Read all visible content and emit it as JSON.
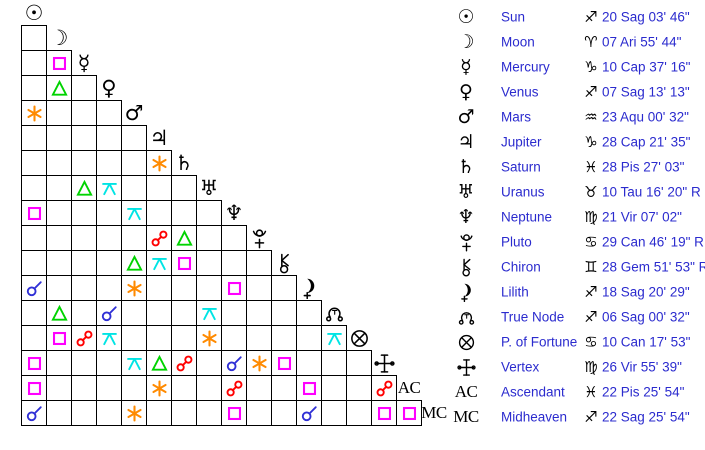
{
  "colors": {
    "background": "#ffffff",
    "grid_line": "#000000",
    "glyph_black": "#000000",
    "text_blue": "#2b2bce",
    "aspect": {
      "conjunction": "#3030d6",
      "sextile": "#ff8a00",
      "square": "#ff00ff",
      "trine": "#00d300",
      "opposition": "#ff0000",
      "quincunx": "#00e4e4"
    }
  },
  "icons": {
    "unicode": {
      "sun": "☉",
      "moon": "☽",
      "mercury": "☿",
      "venus": "♀",
      "mars": "♂",
      "jupiter": "♃",
      "saturn": "♄",
      "uranus": "♅",
      "neptune": "♆",
      "aries": "♈",
      "taurus": "♉",
      "gemini": "♊",
      "cancer": "♋",
      "virgo": "♍",
      "sagittarius": "♐",
      "capricorn": "♑",
      "aquarius": "♒",
      "pisces": "♓"
    },
    "svg_icons": [
      "pluto",
      "chiron",
      "lilith",
      "truenode",
      "fortune",
      "vertex"
    ]
  },
  "grid": {
    "points": [
      {
        "id": "sun",
        "label": "Sun",
        "display": "icon"
      },
      {
        "id": "moon",
        "label": "Moon",
        "display": "icon"
      },
      {
        "id": "mercury",
        "label": "Mercury",
        "display": "icon"
      },
      {
        "id": "venus",
        "label": "Venus",
        "display": "icon"
      },
      {
        "id": "mars",
        "label": "Mars",
        "display": "icon"
      },
      {
        "id": "jupiter",
        "label": "Jupiter",
        "display": "icon"
      },
      {
        "id": "saturn",
        "label": "Saturn",
        "display": "icon"
      },
      {
        "id": "uranus",
        "label": "Uranus",
        "display": "icon"
      },
      {
        "id": "neptune",
        "label": "Neptune",
        "display": "icon"
      },
      {
        "id": "pluto",
        "label": "Pluto",
        "display": "icon"
      },
      {
        "id": "chiron",
        "label": "Chiron",
        "display": "icon"
      },
      {
        "id": "lilith",
        "label": "Lilith",
        "display": "icon"
      },
      {
        "id": "truenode",
        "label": "True Node",
        "display": "icon"
      },
      {
        "id": "fortune",
        "label": "P. of Fortune",
        "display": "icon"
      },
      {
        "id": "vertex",
        "label": "Vertex",
        "display": "icon"
      },
      {
        "id": "ac",
        "label": "Ascendant",
        "display": "text",
        "text": "AC"
      },
      {
        "id": "mc",
        "label": "Midheaven",
        "display": "text",
        "text": "MC"
      }
    ],
    "aspects": [
      {
        "row": 3,
        "col": 2,
        "type": "square"
      },
      {
        "row": 4,
        "col": 2,
        "type": "trine"
      },
      {
        "row": 5,
        "col": 1,
        "type": "sextile"
      },
      {
        "row": 7,
        "col": 6,
        "type": "sextile"
      },
      {
        "row": 8,
        "col": 3,
        "type": "trine"
      },
      {
        "row": 8,
        "col": 4,
        "type": "quincunx"
      },
      {
        "row": 9,
        "col": 1,
        "type": "square"
      },
      {
        "row": 9,
        "col": 5,
        "type": "quincunx"
      },
      {
        "row": 10,
        "col": 6,
        "type": "opposition"
      },
      {
        "row": 10,
        "col": 7,
        "type": "trine"
      },
      {
        "row": 11,
        "col": 5,
        "type": "trine"
      },
      {
        "row": 11,
        "col": 6,
        "type": "quincunx"
      },
      {
        "row": 11,
        "col": 7,
        "type": "square"
      },
      {
        "row": 12,
        "col": 1,
        "type": "conjunction"
      },
      {
        "row": 12,
        "col": 5,
        "type": "sextile"
      },
      {
        "row": 12,
        "col": 9,
        "type": "square"
      },
      {
        "row": 13,
        "col": 2,
        "type": "trine"
      },
      {
        "row": 13,
        "col": 4,
        "type": "conjunction"
      },
      {
        "row": 13,
        "col": 8,
        "type": "quincunx"
      },
      {
        "row": 14,
        "col": 2,
        "type": "square"
      },
      {
        "row": 14,
        "col": 3,
        "type": "opposition"
      },
      {
        "row": 14,
        "col": 4,
        "type": "quincunx"
      },
      {
        "row": 14,
        "col": 8,
        "type": "sextile"
      },
      {
        "row": 14,
        "col": 13,
        "type": "quincunx"
      },
      {
        "row": 15,
        "col": 1,
        "type": "square"
      },
      {
        "row": 15,
        "col": 5,
        "type": "quincunx"
      },
      {
        "row": 15,
        "col": 6,
        "type": "trine"
      },
      {
        "row": 15,
        "col": 7,
        "type": "opposition"
      },
      {
        "row": 15,
        "col": 9,
        "type": "conjunction"
      },
      {
        "row": 15,
        "col": 10,
        "type": "sextile"
      },
      {
        "row": 15,
        "col": 11,
        "type": "square"
      },
      {
        "row": 16,
        "col": 1,
        "type": "square"
      },
      {
        "row": 16,
        "col": 6,
        "type": "sextile"
      },
      {
        "row": 16,
        "col": 9,
        "type": "opposition"
      },
      {
        "row": 16,
        "col": 12,
        "type": "square"
      },
      {
        "row": 16,
        "col": 15,
        "type": "opposition"
      },
      {
        "row": 17,
        "col": 1,
        "type": "conjunction"
      },
      {
        "row": 17,
        "col": 5,
        "type": "sextile"
      },
      {
        "row": 17,
        "col": 9,
        "type": "square"
      },
      {
        "row": 17,
        "col": 12,
        "type": "conjunction"
      },
      {
        "row": 17,
        "col": 15,
        "type": "square"
      },
      {
        "row": 17,
        "col": 16,
        "type": "square"
      }
    ]
  },
  "panel": {
    "rows": [
      {
        "id": "sun",
        "name": "Sun",
        "sign": "sagittarius",
        "value": "20 Sag 03' 46\""
      },
      {
        "id": "moon",
        "name": "Moon",
        "sign": "aries",
        "value": "07 Ari 55' 44\""
      },
      {
        "id": "mercury",
        "name": "Mercury",
        "sign": "capricorn",
        "value": "10 Cap 37' 16\""
      },
      {
        "id": "venus",
        "name": "Venus",
        "sign": "sagittarius",
        "value": "07 Sag 13' 13\""
      },
      {
        "id": "mars",
        "name": "Mars",
        "sign": "aquarius",
        "value": "23 Aqu 00' 32\""
      },
      {
        "id": "jupiter",
        "name": "Jupiter",
        "sign": "capricorn",
        "value": "28 Cap 21' 35\""
      },
      {
        "id": "saturn",
        "name": "Saturn",
        "sign": "pisces",
        "value": "28 Pis 27' 03\""
      },
      {
        "id": "uranus",
        "name": "Uranus",
        "sign": "taurus",
        "value": "10 Tau 16' 20\" R"
      },
      {
        "id": "neptune",
        "name": "Neptune",
        "sign": "virgo",
        "value": "21 Vir 07' 02\""
      },
      {
        "id": "pluto",
        "name": "Pluto",
        "sign": "cancer",
        "value": "29 Can 46' 19\" R"
      },
      {
        "id": "chiron",
        "name": "Chiron",
        "sign": "gemini",
        "value": "28 Gem 51' 53\" R"
      },
      {
        "id": "lilith",
        "name": "Lilith",
        "sign": "sagittarius",
        "value": "18 Sag 20' 29\""
      },
      {
        "id": "truenode",
        "name": "True Node",
        "sign": "sagittarius",
        "value": "06 Sag 00' 32\""
      },
      {
        "id": "fortune",
        "name": "P. of Fortune",
        "sign": "cancer",
        "value": "10 Can 17' 53\""
      },
      {
        "id": "vertex",
        "name": "Vertex",
        "sign": "virgo",
        "value": "26 Vir 55' 39\""
      },
      {
        "id": "ascendant",
        "name": "Ascendant",
        "sign": "pisces",
        "value": "22 Pis 25' 54\"",
        "glyph": "ac"
      },
      {
        "id": "midheaven",
        "name": "Midheaven",
        "sign": "sagittarius",
        "value": "22 Sag 25' 54\"",
        "glyph": "mc"
      }
    ]
  }
}
